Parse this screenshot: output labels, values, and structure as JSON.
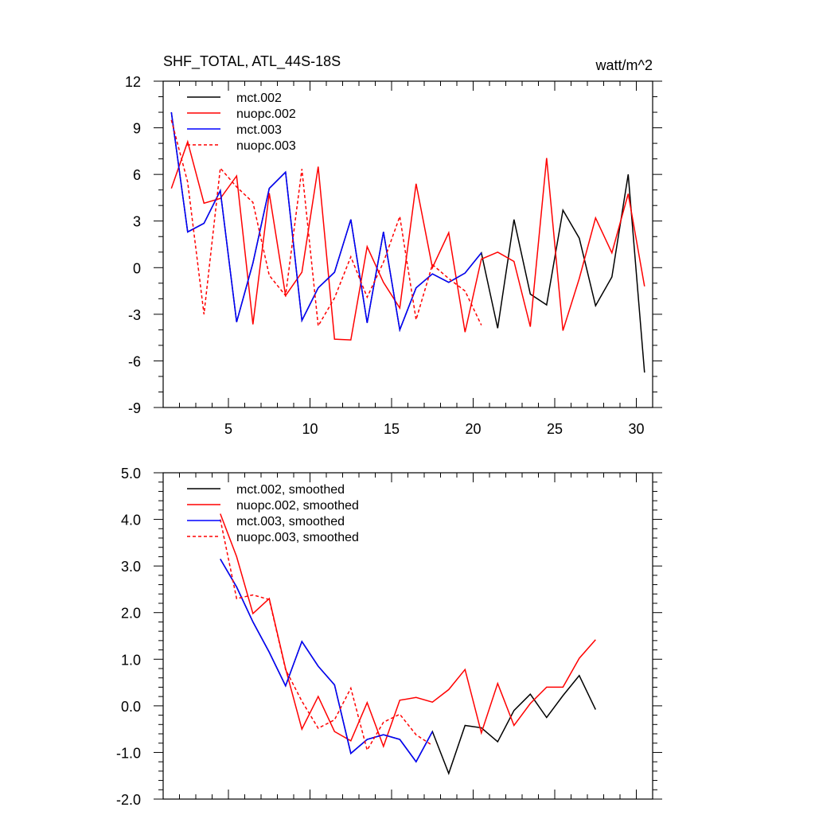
{
  "chart_data": [
    {
      "type": "line",
      "title": "SHF_TOTAL, ATL_44S-18S",
      "units": "watt/m^2",
      "xlabel": "",
      "ylabel": "",
      "xlim": [
        1,
        31
      ],
      "ylim": [
        -9,
        12
      ],
      "xticks": [
        5,
        10,
        15,
        20,
        25,
        30
      ],
      "xtick_labels": [
        "5",
        "10",
        "15",
        "20",
        "25",
        "30"
      ],
      "yticks": [
        -9,
        -6,
        -3,
        0,
        3,
        6,
        9,
        12
      ],
      "ytick_labels": [
        "-9",
        "-6",
        "-3",
        "0",
        "3",
        "6",
        "9",
        "12"
      ],
      "legend_position": "top-left",
      "series": [
        {
          "name": "mct.002",
          "color": "#000000",
          "dash": "solid",
          "x": [
            1.5,
            2.5,
            3.5,
            4.5,
            5.5,
            6.5,
            7.5,
            8.5,
            9.5,
            10.5,
            11.5,
            12.5,
            13.5,
            14.5,
            15.5,
            16.5,
            17.5,
            18.5,
            19.5,
            20.5,
            21.5,
            22.5,
            23.5,
            24.5,
            25.5,
            26.5,
            27.5,
            28.5,
            29.5,
            30.5
          ],
          "values": [
            10.0,
            2.3,
            2.85,
            4.95,
            -3.5,
            0.3,
            5.1,
            6.15,
            -3.4,
            -1.3,
            -0.3,
            3.1,
            -3.55,
            2.3,
            -4.0,
            -1.3,
            -0.4,
            -0.95,
            -0.35,
            0.95,
            -3.9,
            3.1,
            -1.7,
            -2.4,
            3.7,
            1.9,
            -2.45,
            -0.6,
            6.0,
            -6.75
          ]
        },
        {
          "name": "nuopc.002",
          "color": "#ff0000",
          "dash": "solid",
          "x": [
            1.5,
            2.5,
            3.5,
            4.5,
            5.5,
            6.5,
            7.5,
            8.5,
            9.5,
            10.5,
            11.5,
            12.5,
            13.5,
            14.5,
            15.5,
            16.5,
            17.5,
            18.5,
            19.5,
            20.5,
            21.5,
            22.5,
            23.5,
            24.5,
            25.5,
            26.5,
            27.5,
            28.5,
            29.5,
            30.5
          ],
          "values": [
            5.1,
            8.1,
            4.15,
            4.45,
            5.9,
            -3.65,
            4.8,
            -1.8,
            -0.3,
            6.5,
            -4.6,
            -4.65,
            1.35,
            -0.95,
            -2.6,
            5.4,
            0.0,
            2.25,
            -4.15,
            0.55,
            1.0,
            0.4,
            -3.8,
            7.05,
            -4.05,
            -0.7,
            3.2,
            0.95,
            4.75,
            -1.2
          ]
        },
        {
          "name": "mct.003",
          "color": "#0000ff",
          "dash": "solid",
          "x": [
            1.5,
            2.5,
            3.5,
            4.5,
            5.5,
            6.5,
            7.5,
            8.5,
            9.5,
            10.5,
            11.5,
            12.5,
            13.5,
            14.5,
            15.5,
            16.5,
            17.5,
            18.5,
            19.5,
            20.5
          ],
          "values": [
            10.0,
            2.3,
            2.85,
            4.95,
            -3.5,
            0.3,
            5.1,
            6.15,
            -3.4,
            -1.3,
            -0.3,
            3.1,
            -3.55,
            2.3,
            -4.0,
            -1.3,
            -0.4,
            -0.95,
            -0.35,
            0.95
          ]
        },
        {
          "name": "nuopc.003",
          "color": "#ff0000",
          "dash": "dashed",
          "x": [
            1.5,
            2.5,
            3.5,
            4.5,
            5.5,
            6.5,
            7.5,
            8.5,
            9.5,
            10.5,
            11.5,
            12.5,
            13.5,
            14.5,
            15.5,
            16.5,
            17.5,
            18.5,
            19.5,
            20.5
          ],
          "values": [
            9.5,
            5.5,
            -3.0,
            6.4,
            5.2,
            4.2,
            -0.5,
            -1.8,
            6.35,
            -3.75,
            -1.95,
            0.7,
            -1.9,
            0.35,
            3.3,
            -3.35,
            0.2,
            -0.7,
            -1.5,
            -3.7
          ]
        }
      ]
    },
    {
      "type": "line",
      "title": "",
      "xlabel": "",
      "ylabel": "",
      "xlim": [
        1,
        31
      ],
      "ylim": [
        -2.0,
        5.0
      ],
      "xticks": [
        5,
        10,
        15,
        20,
        25,
        30
      ],
      "xtick_labels": [],
      "yticks": [
        -2.0,
        -1.0,
        0.0,
        1.0,
        2.0,
        3.0,
        4.0,
        5.0
      ],
      "ytick_labels": [
        "-2.0",
        "-1.0",
        "0.0",
        "1.0",
        "2.0",
        "3.0",
        "4.0",
        "5.0"
      ],
      "legend_position": "top-left",
      "series": [
        {
          "name": "mct.002, smoothed",
          "color": "#000000",
          "dash": "solid",
          "x": [
            4.5,
            5.5,
            6.5,
            7.5,
            8.5,
            9.5,
            10.5,
            11.5,
            12.5,
            13.5,
            14.5,
            15.5,
            16.5,
            17.5,
            18.5,
            19.5,
            20.5,
            21.5,
            22.5,
            23.5,
            24.5,
            25.5,
            26.5,
            27.5
          ],
          "values": [
            3.15,
            2.55,
            1.8,
            1.15,
            0.43,
            1.38,
            0.85,
            0.45,
            -1.02,
            -0.72,
            -0.62,
            -0.72,
            -1.2,
            -0.55,
            -1.45,
            -0.42,
            -0.47,
            -0.77,
            -0.1,
            0.25,
            -0.25,
            0.22,
            0.65,
            -0.08
          ]
        },
        {
          "name": "nuopc.002, smoothed",
          "color": "#ff0000",
          "dash": "solid",
          "x": [
            4.5,
            5.5,
            6.5,
            7.5,
            8.5,
            9.5,
            10.5,
            11.5,
            12.5,
            13.5,
            14.5,
            15.5,
            16.5,
            17.5,
            18.5,
            19.5,
            20.5,
            21.5,
            22.5,
            23.5,
            24.5,
            25.5,
            26.5,
            27.5
          ],
          "values": [
            4.12,
            3.2,
            1.98,
            2.3,
            0.8,
            -0.5,
            0.2,
            -0.55,
            -0.75,
            0.07,
            -0.87,
            0.12,
            0.18,
            0.08,
            0.35,
            0.78,
            -0.58,
            0.48,
            -0.42,
            0.05,
            0.4,
            0.4,
            1.02,
            1.42
          ]
        },
        {
          "name": "mct.003, smoothed",
          "color": "#0000ff",
          "dash": "solid",
          "x": [
            4.5,
            5.5,
            6.5,
            7.5,
            8.5,
            9.5,
            10.5,
            11.5,
            12.5,
            13.5,
            14.5,
            15.5,
            16.5,
            17.5
          ],
          "values": [
            3.15,
            2.55,
            1.8,
            1.15,
            0.43,
            1.38,
            0.85,
            0.45,
            -1.02,
            -0.72,
            -0.62,
            -0.72,
            -1.2,
            -0.55
          ]
        },
        {
          "name": "nuopc.003, smoothed",
          "color": "#ff0000",
          "dash": "dashed",
          "x": [
            4.5,
            5.5,
            6.5,
            7.5,
            8.5,
            9.5,
            10.5,
            11.5,
            12.5,
            13.5,
            14.5,
            15.5,
            16.5,
            17.5
          ],
          "values": [
            4.0,
            2.3,
            2.38,
            2.28,
            0.78,
            0.1,
            -0.48,
            -0.3,
            0.38,
            -0.95,
            -0.35,
            -0.18,
            -0.62,
            -0.85
          ]
        }
      ]
    }
  ]
}
